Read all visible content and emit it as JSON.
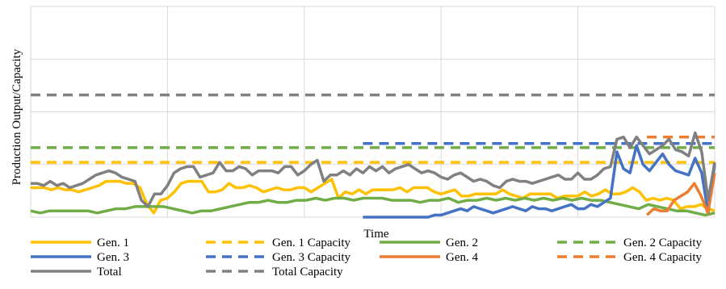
{
  "chart_data": {
    "type": "line",
    "xlabel": "Time",
    "ylabel": "Production Output/Capacity",
    "xlim": [
      0,
      100
    ],
    "ylim": [
      0,
      100
    ],
    "grid": true,
    "legend_position": "bottom",
    "y_tick_labels": "none",
    "x_tick_labels": "none",
    "series": [
      {
        "name": "Gen. 1",
        "color": "#FFC000",
        "style": "solid",
        "y": [
          14,
          14,
          14,
          13,
          14,
          13,
          13,
          12,
          13,
          14,
          15,
          17,
          17,
          17,
          16,
          16,
          14,
          6,
          2,
          8,
          9,
          12,
          16,
          17,
          17,
          17,
          12,
          12,
          13,
          16,
          14,
          14,
          15,
          14,
          12,
          13,
          14,
          13,
          13,
          14,
          14,
          12,
          14,
          16,
          18,
          9,
          12,
          11,
          13,
          11,
          13,
          13,
          13,
          13,
          14,
          12,
          14,
          14,
          14,
          12,
          11,
          12,
          13,
          10,
          10,
          11,
          11,
          11,
          11,
          13,
          11,
          10,
          9,
          11,
          11,
          11,
          11,
          9,
          10,
          10,
          10,
          12,
          10,
          11,
          13,
          11,
          11,
          12,
          14,
          12,
          8,
          9,
          8,
          9,
          8,
          4,
          5,
          5,
          6,
          4,
          3
        ]
      },
      {
        "name": "Gen. 1 Capacity",
        "color": "#FFC000",
        "style": "dashed",
        "y": [
          26,
          26,
          26,
          26,
          26,
          26,
          26,
          26,
          26,
          26,
          26,
          26,
          26,
          26,
          26,
          26,
          26,
          26,
          26,
          26,
          26,
          26,
          26,
          26,
          26,
          26,
          26,
          26,
          26,
          26,
          26,
          26,
          26,
          26,
          26,
          26,
          26,
          26,
          26,
          26,
          26,
          26,
          26,
          26,
          26,
          26,
          26,
          26,
          26,
          26,
          26,
          26,
          26,
          26,
          26,
          26,
          26,
          26,
          26,
          26,
          26,
          26,
          26,
          26,
          26,
          26,
          26,
          26,
          26,
          26,
          26,
          26,
          26,
          26,
          26,
          26,
          26,
          26,
          26,
          26,
          26,
          26,
          26,
          26,
          26,
          26,
          26,
          26,
          26,
          26,
          26,
          26,
          26,
          26,
          26,
          26,
          26,
          26,
          26,
          26,
          26
        ]
      },
      {
        "name": "Gen. 2",
        "color": "#70AD47",
        "style": "solid",
        "y": [
          3,
          2,
          3,
          3,
          3,
          3,
          3,
          2,
          3,
          4,
          4,
          5,
          5,
          5,
          5,
          4,
          3,
          2,
          3,
          3,
          4,
          5,
          6,
          7,
          7,
          8,
          7,
          7,
          8,
          8,
          9,
          8,
          9,
          9,
          8,
          9,
          9,
          9,
          8,
          8,
          8,
          7,
          8,
          8,
          9,
          7,
          8,
          8,
          9,
          8,
          9,
          8,
          9,
          8,
          9,
          8,
          9,
          8,
          9,
          8,
          8,
          7,
          6,
          5,
          4,
          6,
          5,
          4,
          3,
          3,
          2,
          1,
          2
        ]
      },
      {
        "name": "Gen. 2 Capacity",
        "color": "#70AD47",
        "style": "dashed",
        "y": [
          33,
          33,
          33,
          33,
          33,
          33,
          33,
          33,
          33,
          33,
          33,
          33,
          33,
          33,
          33,
          33,
          33,
          33,
          33,
          33,
          33,
          33,
          33,
          33,
          33,
          33,
          33,
          33,
          33,
          33,
          33,
          33,
          33,
          33,
          33,
          33,
          33,
          33,
          33,
          33,
          33,
          33,
          33,
          33,
          33,
          33,
          33,
          33,
          33,
          33,
          33,
          33,
          33,
          33,
          33,
          33,
          33,
          33,
          33,
          33,
          33,
          33,
          33,
          33,
          33,
          33,
          33,
          33,
          33,
          33,
          33,
          33,
          33
        ]
      },
      {
        "name": "Gen. 3",
        "color": "#4472C4",
        "style": "solid",
        "y": [
          null,
          null,
          null,
          null,
          null,
          null,
          null,
          null,
          null,
          null,
          null,
          null,
          null,
          null,
          null,
          null,
          null,
          null,
          null,
          null,
          null,
          null,
          null,
          null,
          null,
          null,
          null,
          null,
          null,
          null,
          null,
          null,
          null,
          null,
          null,
          null,
          null,
          null,
          null,
          null,
          null,
          null,
          null,
          null,
          null,
          null,
          null,
          null,
          null,
          null,
          null,
          0,
          0,
          0,
          0,
          0,
          0,
          0,
          0,
          0,
          0,
          0,
          1,
          1,
          2,
          3,
          4,
          3,
          5,
          4,
          3,
          2,
          3,
          4,
          5,
          4,
          3,
          5,
          4,
          4,
          3,
          4,
          5,
          6,
          4,
          4,
          6,
          5,
          7,
          9,
          31,
          23,
          21,
          34,
          25,
          22,
          26,
          30,
          25,
          22,
          21,
          20,
          28,
          21,
          2,
          25
        ]
      },
      {
        "name": "Gen. 3 Capacity",
        "color": "#4472C4",
        "style": "dashed",
        "y": [
          null,
          null,
          null,
          null,
          null,
          null,
          null,
          null,
          null,
          null,
          null,
          null,
          null,
          null,
          null,
          null,
          null,
          null,
          null,
          null,
          null,
          null,
          null,
          null,
          null,
          null,
          null,
          null,
          null,
          null,
          null,
          null,
          null,
          null,
          null,
          null,
          null,
          null,
          null,
          null,
          null,
          null,
          null,
          null,
          null,
          null,
          null,
          null,
          null,
          null,
          null,
          35,
          35,
          35,
          35,
          35,
          35,
          35,
          35,
          35,
          35,
          35,
          35,
          35,
          35,
          35,
          35,
          35,
          35,
          35,
          35,
          35,
          35,
          35,
          35,
          35,
          35,
          35,
          35,
          35,
          35,
          35,
          35,
          35,
          35,
          35,
          35,
          35,
          35,
          35,
          35,
          35,
          35,
          35,
          35,
          35,
          35,
          35,
          35,
          35,
          35,
          35,
          35,
          35,
          35,
          35
        ]
      },
      {
        "name": "Gen. 4",
        "color": "#ED7D31",
        "style": "solid",
        "y": [
          null,
          null,
          null,
          null,
          null,
          null,
          null,
          null,
          null,
          null,
          null,
          null,
          null,
          null,
          null,
          null,
          null,
          null,
          null,
          null,
          null,
          null,
          null,
          null,
          null,
          null,
          null,
          null,
          null,
          null,
          null,
          null,
          null,
          null,
          null,
          null,
          null,
          null,
          null,
          null,
          null,
          null,
          null,
          null,
          null,
          null,
          null,
          null,
          null,
          null,
          null,
          null,
          null,
          null,
          null,
          null,
          null,
          null,
          null,
          null,
          null,
          null,
          null,
          null,
          null,
          null,
          null,
          null,
          null,
          null,
          null,
          null,
          null,
          null,
          null,
          null,
          null,
          null,
          null,
          null,
          null,
          null,
          null,
          null,
          null,
          null,
          null,
          null,
          null,
          null,
          null,
          1,
          4,
          3,
          3,
          8,
          10,
          12,
          16,
          10,
          2,
          21
        ]
      },
      {
        "name": "Gen. 4 Capacity",
        "color": "#ED7D31",
        "style": "dashed",
        "y": [
          null,
          null,
          null,
          null,
          null,
          null,
          null,
          null,
          null,
          null,
          null,
          null,
          null,
          null,
          null,
          null,
          null,
          null,
          null,
          null,
          null,
          null,
          null,
          null,
          null,
          null,
          null,
          null,
          null,
          null,
          null,
          null,
          null,
          null,
          null,
          null,
          null,
          null,
          null,
          null,
          null,
          null,
          null,
          null,
          null,
          null,
          null,
          null,
          null,
          null,
          null,
          null,
          null,
          null,
          null,
          null,
          null,
          null,
          null,
          null,
          null,
          null,
          null,
          null,
          null,
          null,
          null,
          null,
          null,
          null,
          null,
          null,
          null,
          null,
          null,
          null,
          null,
          null,
          null,
          null,
          null,
          null,
          null,
          null,
          null,
          null,
          null,
          null,
          null,
          null,
          null,
          38,
          38,
          38,
          38,
          38,
          38,
          38,
          38,
          38,
          38,
          38
        ]
      },
      {
        "name": "Total",
        "color": "#808080",
        "style": "solid",
        "y": [
          16,
          16,
          15,
          17,
          15,
          16,
          14,
          15,
          16,
          18,
          20,
          21,
          22,
          21,
          19,
          18,
          17,
          8,
          5,
          11,
          11,
          15,
          21,
          23,
          24,
          24,
          19,
          20,
          21,
          26,
          22,
          22,
          24,
          23,
          20,
          22,
          22,
          22,
          21,
          24,
          24,
          20,
          22,
          25,
          27,
          17,
          20,
          20,
          22,
          20,
          23,
          21,
          24,
          22,
          24,
          21,
          23,
          24,
          25,
          23,
          21,
          22,
          21,
          19,
          18,
          20,
          21,
          19,
          17,
          18,
          17,
          15,
          14,
          17,
          18,
          17,
          17,
          16,
          17,
          18,
          19,
          20,
          18,
          18,
          21,
          18,
          18,
          20,
          23,
          24,
          37,
          38,
          33,
          38,
          34,
          30,
          32,
          34,
          37,
          32,
          31,
          29,
          40,
          31,
          8,
          26
        ]
      },
      {
        "name": "Total Capacity",
        "color": "#808080",
        "style": "dashed",
        "y": [
          58,
          58,
          58,
          58,
          58,
          58,
          58,
          58,
          58,
          58,
          58,
          58,
          58,
          58,
          58,
          58,
          58,
          58,
          58,
          58,
          58,
          58,
          58,
          58,
          58,
          58,
          58,
          58,
          58,
          58,
          58,
          58,
          58,
          58,
          58,
          58,
          58,
          58,
          58,
          58,
          58,
          58,
          58,
          58,
          58,
          58,
          58,
          58,
          58,
          58,
          58,
          58,
          58,
          58,
          58,
          58,
          58,
          58,
          58,
          58,
          58,
          58,
          58,
          58,
          58,
          58,
          58,
          58,
          58,
          58,
          58,
          58,
          58,
          58,
          58,
          58,
          58,
          58,
          58,
          58,
          58,
          58,
          58,
          58,
          58,
          58,
          58,
          58,
          58,
          58,
          58,
          58,
          58,
          58,
          58,
          58,
          58,
          58,
          58,
          58,
          58
        ]
      }
    ]
  }
}
